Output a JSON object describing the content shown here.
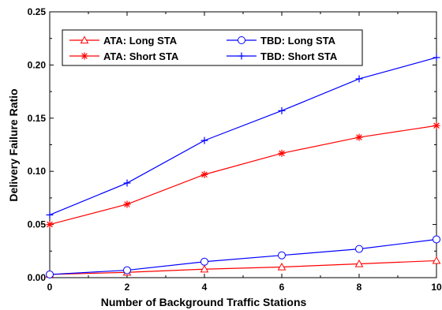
{
  "chart_data": {
    "type": "line",
    "xlabel": "Number of Background Traffic Stations",
    "ylabel": "Delivery Failure Ratio",
    "xlim": [
      0,
      10
    ],
    "ylim": [
      0,
      0.25
    ],
    "xticks": [
      0,
      2,
      4,
      6,
      8,
      10
    ],
    "yticks": [
      0.0,
      0.05,
      0.1,
      0.15,
      0.2,
      0.25
    ],
    "xtick_labels": [
      "0",
      "2",
      "4",
      "6",
      "8",
      "10"
    ],
    "ytick_labels": [
      "0.00",
      "0.05",
      "0.10",
      "0.15",
      "0.20",
      "0.25"
    ],
    "grid": false,
    "legend_position": "top-left",
    "series": [
      {
        "name": "ATA: Long STA",
        "color": "#ff0000",
        "marker": "triangle-open",
        "x": [
          0,
          2,
          4,
          6,
          8,
          10
        ],
        "y": [
          0.003,
          0.005,
          0.008,
          0.01,
          0.013,
          0.016
        ]
      },
      {
        "name": "TBD: Long STA",
        "color": "#0000ff",
        "marker": "circle-open",
        "x": [
          0,
          2,
          4,
          6,
          8,
          10
        ],
        "y": [
          0.003,
          0.007,
          0.015,
          0.021,
          0.027,
          0.036
        ]
      },
      {
        "name": "ATA: Short STA",
        "color": "#ff0000",
        "marker": "asterisk",
        "x": [
          0,
          2,
          4,
          6,
          8,
          10
        ],
        "y": [
          0.05,
          0.069,
          0.097,
          0.117,
          0.132,
          0.143
        ]
      },
      {
        "name": "TBD: Short STA",
        "color": "#0000ff",
        "marker": "plus",
        "x": [
          0,
          2,
          4,
          6,
          8,
          10
        ],
        "y": [
          0.059,
          0.089,
          0.129,
          0.157,
          0.187,
          0.207
        ]
      }
    ]
  }
}
